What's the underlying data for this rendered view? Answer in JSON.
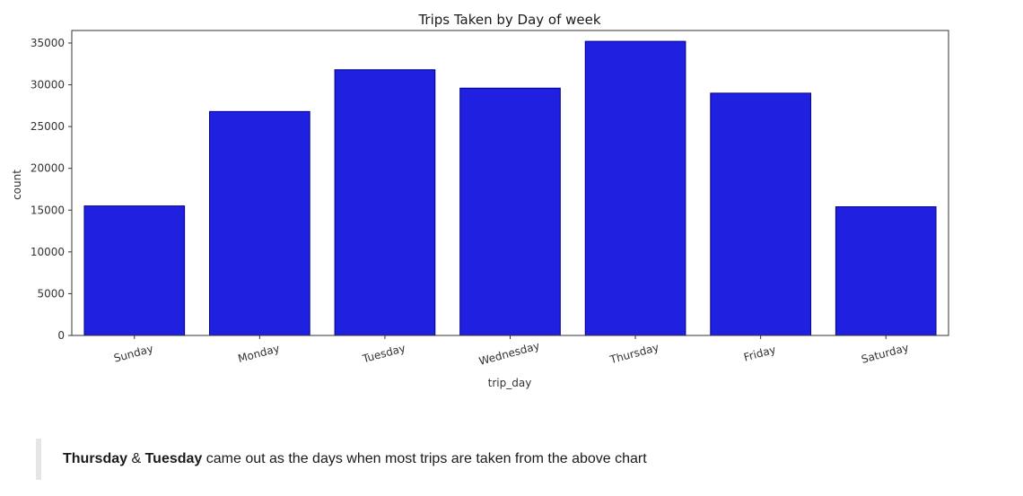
{
  "chart_data": {
    "type": "bar",
    "title": "Trips Taken by Day of week",
    "xlabel": "trip_day",
    "ylabel": "count",
    "categories": [
      "Sunday",
      "Monday",
      "Tuesday",
      "Wednesday",
      "Thursday",
      "Friday",
      "Saturday"
    ],
    "values": [
      15500,
      26800,
      31800,
      29600,
      35200,
      29000,
      15400
    ],
    "ylim": [
      0,
      36500
    ],
    "yticks": [
      0,
      5000,
      10000,
      15000,
      20000,
      25000,
      30000,
      35000
    ],
    "bar_color": "#2020e0",
    "bar_edge_color": "#00008b",
    "grid": false,
    "xtick_rotation_deg": -15
  },
  "note": {
    "bold1": "Thursday",
    "amp": " & ",
    "bold2": "Tuesday",
    "rest": " came out as the days when most trips are taken from the above chart"
  }
}
